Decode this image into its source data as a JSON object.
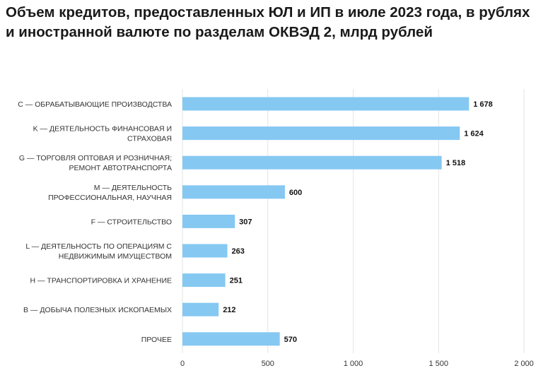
{
  "title": "Объем кредитов, предоставленных ЮЛ и ИП в июле 2023 года, в рублях и иностранной валюте по разделам ОКВЭД 2, млрд рублей",
  "chart_data": {
    "type": "bar",
    "orientation": "horizontal",
    "title": "Объем кредитов, предоставленных ЮЛ и ИП в июле 2023 года, в рублях и иностранной валюте по разделам ОКВЭД 2, млрд рублей",
    "categories": [
      [
        "C — ОБРАБАТЫВАЮЩИЕ ПРОИЗВОДСТВА"
      ],
      [
        "K — ДЕЯТЕЛЬНОСТЬ ФИНАНСОВАЯ И",
        "СТРАХОВАЯ"
      ],
      [
        "G — ТОРГОВЛЯ ОПТОВАЯ И РОЗНИЧНАЯ;",
        "РЕМОНТ АВТОТРАНСПОРТА"
      ],
      [
        "M — ДЕЯТЕЛЬНОСТЬ",
        "ПРОФЕССИОНАЛЬНАЯ, НАУЧНАЯ"
      ],
      [
        "F — СТРОИТЕЛЬСТВО"
      ],
      [
        "L — ДЕЯТЕЛЬНОСТЬ ПО ОПЕРАЦИЯМ С",
        "НЕДВИЖИМЫМ ИМУЩЕСТВОМ"
      ],
      [
        "H — ТРАНСПОРТИРОВКА И ХРАНЕНИЕ"
      ],
      [
        "B — ДОБЫЧА ПОЛЕЗНЫХ ИСКОПАЕМЫХ"
      ],
      [
        "ПРОЧЕЕ"
      ]
    ],
    "values": [
      1678,
      1624,
      1518,
      600,
      307,
      263,
      251,
      212,
      570
    ],
    "value_labels": [
      "1 678",
      "1 624",
      "1 518",
      "600",
      "307",
      "263",
      "251",
      "212",
      "570"
    ],
    "xlim": [
      0,
      2000
    ],
    "xticks": [
      0,
      500,
      1000,
      1500,
      2000
    ],
    "xtick_labels": [
      "0",
      "500",
      "1 000",
      "1 500",
      "2 000"
    ],
    "grid": true,
    "bar_color": "#85c8f2",
    "grid_color": "#e3e3e3"
  }
}
